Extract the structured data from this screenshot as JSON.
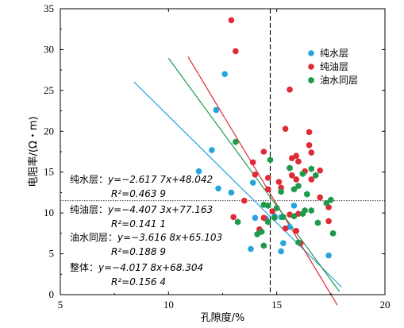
{
  "chart_data": {
    "type": "scatter",
    "xlabel": "孔隙度/%",
    "ylabel": "电阻率/(Ω・m)",
    "xlim": [
      5,
      20
    ],
    "ylim": [
      0,
      35
    ],
    "xticks": [
      "5",
      "10",
      "15",
      "20"
    ],
    "yticks": [
      "0",
      "5",
      "10",
      "15",
      "20",
      "25",
      "30",
      "35"
    ],
    "legend_position": "top-right",
    "reference_lines": {
      "vertical_x": 14.7,
      "horizontal_y": 11.5
    },
    "series": [
      {
        "name": "纯水层",
        "color": "#27a4dc",
        "marker": "circle",
        "points": [
          [
            12.6,
            27.0
          ],
          [
            12.2,
            22.6
          ],
          [
            12.0,
            17.7
          ],
          [
            11.4,
            15.1
          ],
          [
            12.3,
            13.0
          ],
          [
            12.9,
            12.5
          ],
          [
            13.9,
            13.7
          ],
          [
            14.0,
            9.4
          ],
          [
            14.5,
            9.3
          ],
          [
            14.9,
            9.6
          ],
          [
            15.2,
            9.5
          ],
          [
            15.6,
            8.3
          ],
          [
            15.3,
            6.3
          ],
          [
            13.8,
            5.6
          ],
          [
            15.2,
            5.3
          ],
          [
            17.4,
            4.8
          ],
          [
            15.8,
            10.9
          ]
        ],
        "fit_x": [
          8.4,
          18.0
        ],
        "fit": {
          "slope": -2.6177,
          "intercept": 48.042,
          "r2": 0.4639
        }
      },
      {
        "name": "纯油层",
        "color": "#e02a36",
        "marker": "circle",
        "points": [
          [
            12.9,
            33.6
          ],
          [
            13.1,
            29.8
          ],
          [
            15.6,
            25.1
          ],
          [
            15.4,
            20.3
          ],
          [
            16.5,
            19.9
          ],
          [
            16.5,
            18.3
          ],
          [
            16.6,
            17.4
          ],
          [
            15.9,
            17.0
          ],
          [
            14.4,
            17.5
          ],
          [
            15.7,
            16.7
          ],
          [
            16.0,
            16.3
          ],
          [
            13.9,
            16.2
          ],
          [
            15.6,
            15.5
          ],
          [
            16.3,
            15.1
          ],
          [
            14.0,
            14.7
          ],
          [
            17.0,
            15.2
          ],
          [
            15.7,
            14.6
          ],
          [
            14.6,
            14.3
          ],
          [
            16.6,
            14.1
          ],
          [
            15.1,
            13.8
          ],
          [
            15.9,
            14.1
          ],
          [
            15.2,
            13.1
          ],
          [
            14.6,
            12.9
          ],
          [
            17.0,
            11.9
          ],
          [
            13.5,
            11.5
          ],
          [
            13.0,
            9.5
          ],
          [
            15.6,
            9.8
          ],
          [
            14.4,
            9.4
          ],
          [
            16.0,
            9.9
          ],
          [
            14.8,
            10.2
          ],
          [
            17.4,
            10.7
          ],
          [
            17.4,
            9.0
          ],
          [
            14.2,
            8.0
          ],
          [
            15.4,
            8.1
          ],
          [
            16.1,
            6.3
          ],
          [
            15.9,
            7.8
          ]
        ],
        "fit_x": [
          10.9,
          17.8
        ],
        "fit": {
          "slope": -4.4073,
          "intercept": 77.163,
          "r2": 0.1411
        }
      },
      {
        "name": "油水同层",
        "color": "#1f9a4a",
        "marker": "hexagon",
        "points": [
          [
            13.1,
            18.7
          ],
          [
            14.7,
            16.5
          ],
          [
            15.6,
            15.5
          ],
          [
            16.6,
            15.4
          ],
          [
            16.2,
            14.8
          ],
          [
            16.8,
            14.6
          ],
          [
            16.0,
            13.3
          ],
          [
            15.8,
            12.9
          ],
          [
            15.2,
            12.6
          ],
          [
            16.4,
            12.3
          ],
          [
            17.5,
            11.6
          ],
          [
            17.3,
            11.2
          ],
          [
            14.4,
            11.0
          ],
          [
            14.6,
            10.9
          ],
          [
            15.0,
            10.6
          ],
          [
            16.3,
            10.3
          ],
          [
            16.6,
            10.3
          ],
          [
            16.2,
            9.9
          ],
          [
            15.8,
            9.6
          ],
          [
            15.3,
            9.5
          ],
          [
            14.6,
            8.9
          ],
          [
            14.1,
            7.4
          ],
          [
            14.3,
            7.7
          ],
          [
            13.2,
            8.9
          ],
          [
            16.9,
            8.8
          ],
          [
            16.0,
            6.4
          ],
          [
            17.6,
            7.5
          ],
          [
            14.4,
            6.0
          ],
          [
            14.9,
            9.4
          ]
        ],
        "fit_x": [
          10.0,
          17.9
        ],
        "fit": {
          "slope": -3.6168,
          "intercept": 65.103,
          "r2": 0.1889
        }
      }
    ],
    "annotations": [
      {
        "label": "纯水层：",
        "equation": "y=−2.617 7x+48.042",
        "r2": "R²=0.463 9"
      },
      {
        "label": "纯油层：",
        "equation": "y=−4.407 3x+77.163",
        "r2": "R²=0.141 1"
      },
      {
        "label": "油水同层：",
        "equation": "y=−3.616 8x+65.103",
        "r2": "R²=0.188 9"
      },
      {
        "label": "整体：",
        "equation": "y=−4.017 8x+68.304",
        "r2": "R²=0.156 4"
      }
    ]
  }
}
